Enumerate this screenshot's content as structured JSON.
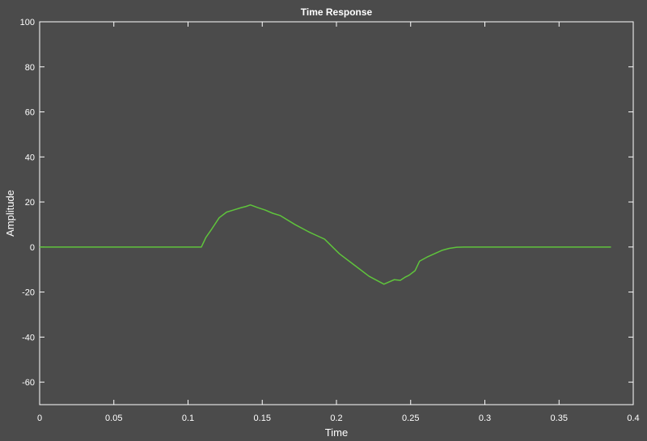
{
  "chart_data": {
    "type": "line",
    "title": "Time Response",
    "xlabel": "Time",
    "ylabel": "Amplitude",
    "xlim": [
      0,
      0.4
    ],
    "ylim": [
      -70,
      100
    ],
    "xticks": [
      0,
      0.05,
      0.1,
      0.15,
      0.2,
      0.25,
      0.3,
      0.35,
      0.4
    ],
    "yticks": [
      -60,
      -40,
      -20,
      0,
      20,
      40,
      60,
      80,
      100
    ],
    "xtick_labels": [
      "0",
      "0.05",
      "0.1",
      "0.15",
      "0.2",
      "0.25",
      "0.3",
      "0.35",
      "0.4"
    ],
    "ytick_labels": [
      "-60",
      "-40",
      "-20",
      "0",
      "20",
      "40",
      "60",
      "80",
      "100"
    ],
    "grid": false,
    "series": [
      {
        "color": "#5fc43c",
        "x": [
          0,
          0.109,
          0.112,
          0.116,
          0.121,
          0.126,
          0.131,
          0.136,
          0.139,
          0.142,
          0.147,
          0.152,
          0.157,
          0.162,
          0.172,
          0.182,
          0.187,
          0.192,
          0.202,
          0.212,
          0.222,
          0.232,
          0.239,
          0.243,
          0.246,
          0.249,
          0.253,
          0.256,
          0.261,
          0.266,
          0.271,
          0.276,
          0.281,
          0.286,
          0.3,
          0.35,
          0.385
        ],
        "y": [
          0,
          0,
          4.2,
          8,
          13,
          15.5,
          16.5,
          17.5,
          18,
          18.7,
          17.5,
          16.4,
          15,
          14,
          10,
          6.5,
          5,
          3.5,
          -3,
          -8,
          -13,
          -16.5,
          -14.5,
          -14.8,
          -13.5,
          -12.5,
          -10.5,
          -6.3,
          -4.5,
          -3,
          -1.5,
          -0.6,
          -0.1,
          0,
          0,
          0,
          0
        ]
      }
    ]
  },
  "colors": {
    "background": "#4b4b4b",
    "axes_frame": "#ffffff",
    "text": "#ffffff"
  }
}
